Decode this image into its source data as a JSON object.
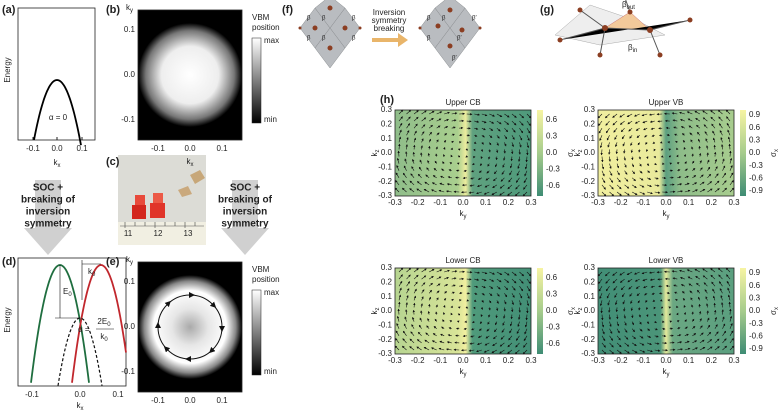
{
  "panel_labels": [
    "(a)",
    "(b)",
    "(c)",
    "(d)",
    "(e)",
    "(f)",
    "(g)",
    "(h)"
  ],
  "a": {
    "ylabel": "Energy",
    "xticks": [
      "-0.1",
      "0.0",
      "0.1"
    ],
    "xlabel": "k",
    "xlabel_sub": "x",
    "annotation": "α = 0"
  },
  "b": {
    "ylabel": "k",
    "ylabel_sub": "y",
    "yticks": [
      "0.1",
      "0.0",
      "-0.1"
    ],
    "xticks": [
      "-0.1",
      "0.0",
      "0.1"
    ],
    "xlabel": "k",
    "xlabel_sub": "x",
    "colorbar_title": [
      "VBM",
      "position"
    ],
    "colorbar_max": "max",
    "colorbar_min": "min"
  },
  "c": {
    "ruler": [
      "11",
      "12",
      "13"
    ]
  },
  "arrows": [
    [
      "SOC +",
      "breaking of",
      "inversion",
      "symmetry"
    ],
    [
      "SOC +",
      "breaking of",
      "inversion",
      "symmetry"
    ]
  ],
  "d": {
    "ylabel": "Energy",
    "xticks": [
      "-0.1",
      "0.0",
      "0.1"
    ],
    "xlabel": "k",
    "xlabel_sub": "x",
    "e0": "E",
    "e0_sub": "0",
    "k0": "k",
    "k0_sub": "0",
    "alpha": "α =",
    "num": "2E",
    "num_sub": "0",
    "den": "k",
    "den_sub": "0"
  },
  "e": {
    "ylabel": "k",
    "ylabel_sub": "y",
    "yticks": [
      "0.1",
      "0.0",
      "-0.1"
    ],
    "xticks": [
      "-0.1",
      "0.0",
      "0.1"
    ],
    "xlabel": "k",
    "xlabel_sub": "x",
    "colorbar_title": [
      "VBM",
      "position"
    ],
    "colorbar_max": "max",
    "colorbar_min": "min"
  },
  "f": {
    "left_betas": [
      "β",
      "β",
      "β",
      "β",
      "β",
      "β"
    ],
    "right_betas": [
      "β",
      "β",
      "β′",
      "β",
      "β′",
      "β′"
    ],
    "arrow_text": [
      "Inversion",
      "symmetry",
      "breaking"
    ]
  },
  "g": {
    "out": "β",
    "out_sub": "out",
    "in": "β",
    "in_sub": "in"
  },
  "h": {
    "ticks": [
      "-0.3",
      "-0.2",
      "-0.1",
      "0.0",
      "0.1",
      "0.2",
      "0.3"
    ],
    "xlabel": "k",
    "xlabel_sub": "y",
    "ylabel": "k",
    "ylabel_sub": "z",
    "cbar_label": "σ",
    "cbar_label_sub": "x",
    "panels": [
      {
        "title": "Upper CB",
        "cbar_ticks": [
          "0.6",
          "0.3",
          "0.0",
          "-0.3",
          "-0.6"
        ]
      },
      {
        "title": "Upper VB",
        "cbar_ticks": [
          "0.9",
          "0.6",
          "0.3",
          "0.0",
          "-0.3",
          "-0.6",
          "-0.9"
        ]
      },
      {
        "title": "Lower CB",
        "cbar_ticks": [
          "0.6",
          "0.3",
          "0.0",
          "-0.3",
          "-0.6"
        ]
      },
      {
        "title": "Lower VB",
        "cbar_ticks": [
          "0.9",
          "0.6",
          "0.3",
          "0.0",
          "-0.3",
          "-0.6",
          "-0.9"
        ]
      }
    ]
  }
}
